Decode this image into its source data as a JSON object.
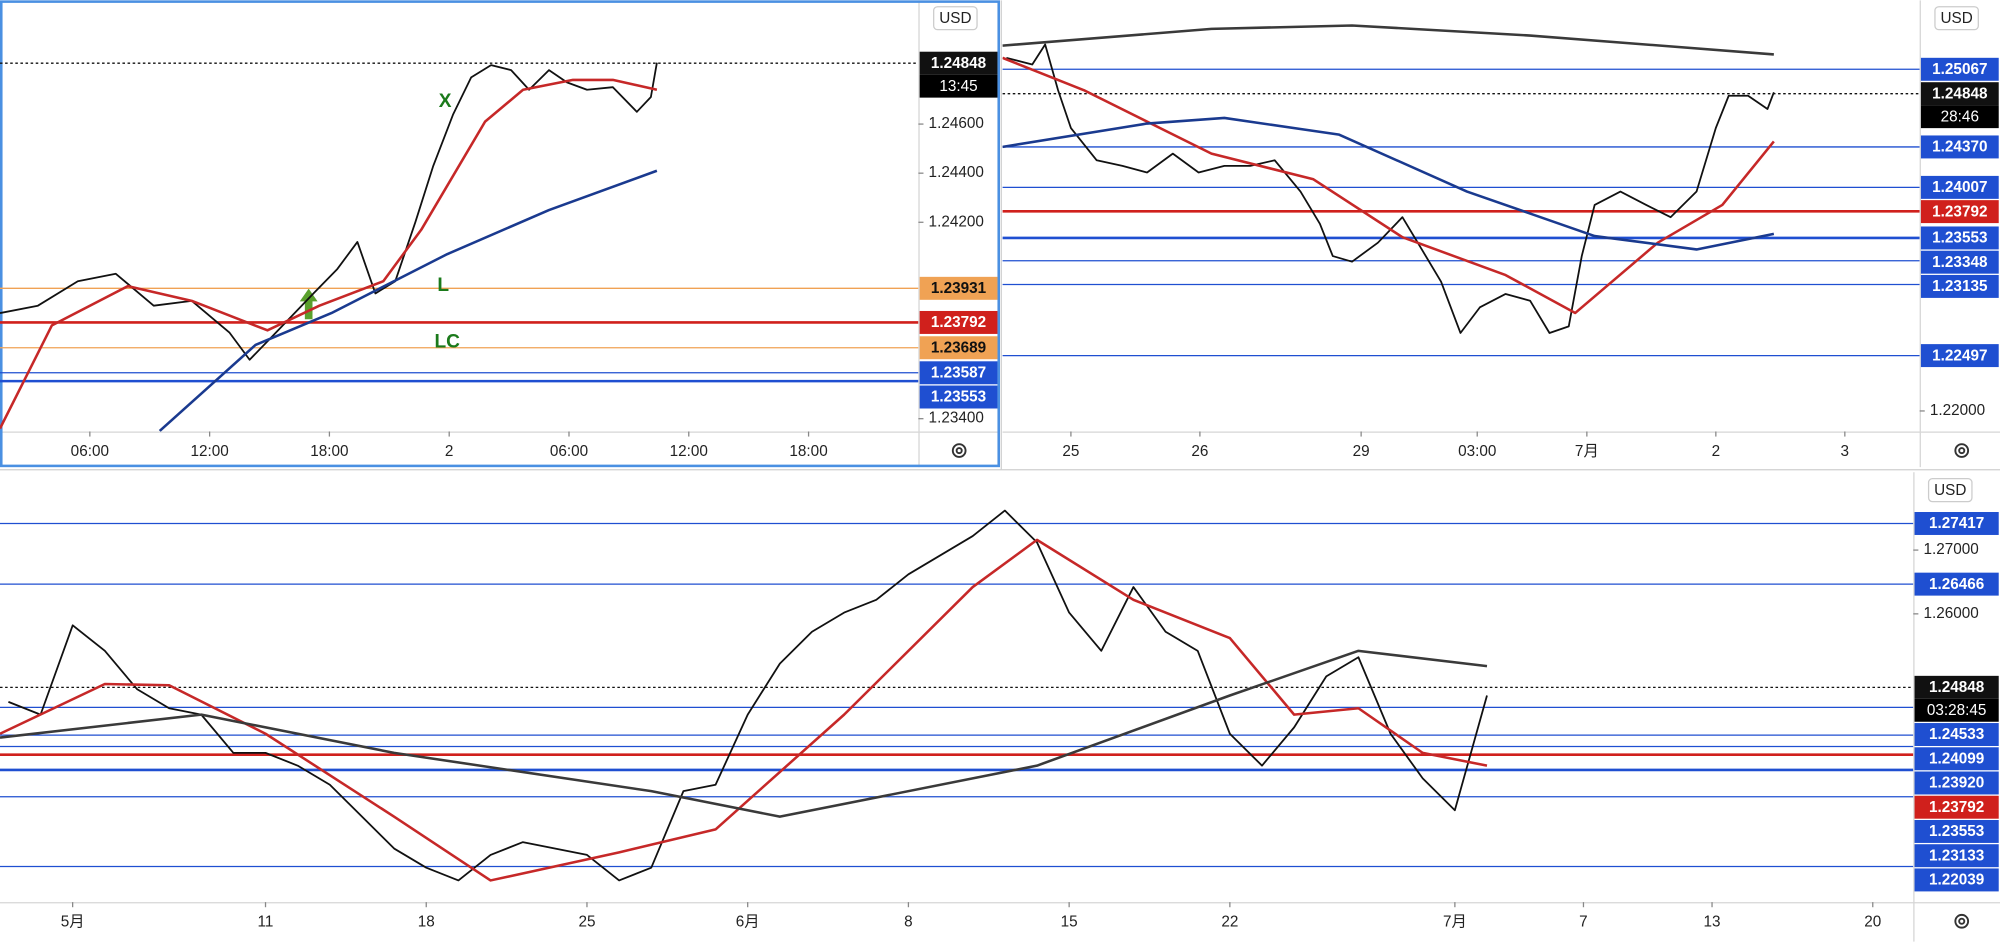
{
  "chart_data": [
    {
      "type": "line",
      "currency": "USD",
      "countdown": "13:45",
      "xlim": [
        1.5,
        47.5
      ],
      "ylim": [
        1.23348,
        1.25104
      ],
      "xticks": [
        {
          "value": 6,
          "label": "06:00"
        },
        {
          "value": 12,
          "label": "12:00"
        },
        {
          "value": 18,
          "label": "18:00"
        },
        {
          "value": 24,
          "label": "2"
        },
        {
          "value": 30,
          "label": "06:00"
        },
        {
          "value": 36,
          "label": "12:00"
        },
        {
          "value": 42,
          "label": "18:00"
        }
      ],
      "yticks": [
        {
          "value": 1.246,
          "label": "1.24600"
        },
        {
          "value": 1.244,
          "label": "1.24400"
        },
        {
          "value": 1.242,
          "label": "1.24200"
        },
        {
          "value": 1.234,
          "label": "1.23400"
        }
      ],
      "levels": [
        {
          "value": 1.24848,
          "label": "1.24848",
          "color": "#111111",
          "style": "dotted"
        },
        {
          "value": 1.23931,
          "label": "1.23931",
          "color": "#f0a254",
          "style": "solid"
        },
        {
          "value": 1.23792,
          "label": "1.23792",
          "color": "#d0201c",
          "style": "thick"
        },
        {
          "value": 1.23689,
          "label": "1.23689",
          "color": "#f0a254",
          "style": "solid"
        },
        {
          "value": 1.23587,
          "label": "1.23587",
          "color": "#1f4fd1",
          "style": "solid"
        },
        {
          "value": 1.23553,
          "label": "1.23553",
          "color": "#1f4fd1",
          "style": "thick"
        }
      ],
      "annotations": [
        {
          "text": "X",
          "x": 23.8,
          "y": 1.2469
        },
        {
          "text": "L",
          "x": 23.7,
          "y": 1.2394
        },
        {
          "text": "LC",
          "x": 23.9,
          "y": 1.2371
        }
      ],
      "annotation_color": "#1b7a1b",
      "series": [
        {
          "color": "#111111",
          "x": [
            1.5,
            3.4,
            5.4,
            7.3,
            9.2,
            11.1,
            13.0,
            14.0,
            15.2,
            17.2,
            18.4,
            19.4,
            20.3,
            21.3,
            22.3,
            23.2,
            24.2,
            25.1,
            26.1,
            27.1,
            28.0,
            29.0,
            29.9,
            30.9,
            32.2,
            33.4,
            34.1,
            34.4
          ],
          "values": [
            1.2383,
            1.2386,
            1.2396,
            1.2399,
            1.2386,
            1.2388,
            1.2375,
            1.2364,
            1.2374,
            1.2391,
            1.2401,
            1.2412,
            1.2391,
            1.2396,
            1.242,
            1.2443,
            1.2464,
            1.2479,
            1.2484,
            1.2482,
            1.2474,
            1.2482,
            1.2477,
            1.2474,
            1.2475,
            1.2465,
            1.2471,
            1.2485
          ]
        },
        {
          "color": "#c62828",
          "x": [
            1.5,
            4.1,
            7.9,
            11.1,
            14.9,
            17.5,
            20.7,
            22.6,
            25.8,
            27.7,
            30.2,
            32.2,
            34.4
          ],
          "values": [
            1.2336,
            1.2378,
            1.2394,
            1.2388,
            1.2376,
            1.2386,
            1.2396,
            1.2417,
            1.2461,
            1.2474,
            1.2478,
            1.2478,
            1.2474
          ]
        },
        {
          "color": "#1a3a8f",
          "x": [
            9.5,
            14.3,
            18.1,
            23.9,
            29.0,
            34.4
          ],
          "values": [
            1.2335,
            1.237,
            1.2383,
            1.2407,
            1.2425,
            1.2441
          ]
        }
      ]
    },
    {
      "type": "line",
      "currency": "USD",
      "countdown": "28:46",
      "xlim": [
        -0.53,
        6.58
      ],
      "ylim": [
        1.21816,
        1.25686
      ],
      "xticks": [
        {
          "value": 0,
          "label": "25"
        },
        {
          "value": 1,
          "label": "26"
        },
        {
          "value": 2.25,
          "label": "29"
        },
        {
          "value": 3.15,
          "label": "03:00"
        },
        {
          "value": 4,
          "label": "7月"
        },
        {
          "value": 5,
          "label": "2"
        },
        {
          "value": 6,
          "label": "3"
        }
      ],
      "yticks": [
        {
          "value": 1.22,
          "label": "1.22000"
        }
      ],
      "levels": [
        {
          "value": 1.25067,
          "label": "1.25067",
          "color": "#1f4fd1",
          "style": "solid"
        },
        {
          "value": 1.24848,
          "label": "1.24848",
          "color": "#111111",
          "style": "dotted"
        },
        {
          "value": 1.2437,
          "label": "1.24370",
          "color": "#1f4fd1",
          "style": "solid"
        },
        {
          "value": 1.24007,
          "label": "1.24007",
          "color": "#1f4fd1",
          "style": "solid"
        },
        {
          "value": 1.23792,
          "label": "1.23792",
          "color": "#d0201c",
          "style": "thick"
        },
        {
          "value": 1.23553,
          "label": "1.23553",
          "color": "#1f4fd1",
          "style": "thick"
        },
        {
          "value": 1.23348,
          "label": "1.23348",
          "color": "#1f4fd1",
          "style": "solid"
        },
        {
          "value": 1.23135,
          "label": "1.23135",
          "color": "#1f4fd1",
          "style": "solid"
        },
        {
          "value": 1.22497,
          "label": "1.22497",
          "color": "#1f4fd1",
          "style": "solid"
        }
      ],
      "series": [
        {
          "color": "#111111",
          "x": [
            -0.5,
            -0.3,
            -0.2,
            -0.1,
            0,
            0.2,
            0.4,
            0.59,
            0.79,
            0.99,
            1.19,
            1.39,
            1.58,
            1.78,
            1.93,
            2.03,
            2.18,
            2.38,
            2.57,
            2.72,
            2.87,
            3.02,
            3.17,
            3.37,
            3.56,
            3.71,
            3.86,
            3.96,
            4.06,
            4.26,
            4.46,
            4.65,
            4.85,
            5.0,
            5.1,
            5.25,
            5.4,
            5.45
          ],
          "values": [
            1.2517,
            1.2511,
            1.2529,
            1.2488,
            1.2454,
            1.2425,
            1.242,
            1.2414,
            1.2431,
            1.2414,
            1.242,
            1.242,
            1.2425,
            1.2397,
            1.2368,
            1.2339,
            1.2334,
            1.2351,
            1.2374,
            1.2345,
            1.2316,
            1.227,
            1.2293,
            1.2305,
            1.2299,
            1.227,
            1.2276,
            1.2339,
            1.2385,
            1.2397,
            1.2385,
            1.2374,
            1.2397,
            1.2454,
            1.2483,
            1.2483,
            1.2471,
            1.2486
          ]
        },
        {
          "color": "#c62828",
          "x": [
            -0.53,
            0.1,
            1.09,
            1.88,
            2.57,
            3.37,
            3.91,
            4.55,
            5.05,
            5.45
          ],
          "values": [
            1.2517,
            1.2488,
            1.2431,
            1.2408,
            1.2356,
            1.2322,
            1.2288,
            1.2351,
            1.2385,
            1.2442
          ]
        },
        {
          "color": "#1a3a8f",
          "x": [
            -0.53,
            0.59,
            1.19,
            2.08,
            3.07,
            4.06,
            4.85,
            5.45
          ],
          "values": [
            1.2437,
            1.2458,
            1.2463,
            1.2448,
            1.2397,
            1.2357,
            1.2345,
            1.2359
          ]
        },
        {
          "color": "#3a3a3a",
          "x": [
            -0.53,
            1.09,
            2.18,
            3.56,
            5.45
          ],
          "values": [
            1.2528,
            1.2543,
            1.2546,
            1.2537,
            1.252
          ]
        }
      ]
    },
    {
      "type": "line",
      "currency": "USD",
      "countdown": "03:28:45",
      "xlim": [
        -2.26,
        57.26
      ],
      "ylim": [
        1.2148,
        1.2822
      ],
      "xticks": [
        {
          "value": 0,
          "label": "5月"
        },
        {
          "value": 6,
          "label": "11"
        },
        {
          "value": 11,
          "label": "18"
        },
        {
          "value": 16,
          "label": "25"
        },
        {
          "value": 21,
          "label": "6月"
        },
        {
          "value": 26,
          "label": "8"
        },
        {
          "value": 31,
          "label": "15"
        },
        {
          "value": 36,
          "label": "22"
        },
        {
          "value": 43,
          "label": "7月"
        },
        {
          "value": 47,
          "label": "7"
        },
        {
          "value": 51,
          "label": "13"
        },
        {
          "value": 56,
          "label": "20"
        }
      ],
      "yticks": [
        {
          "value": 1.27,
          "label": "1.27000"
        },
        {
          "value": 1.26,
          "label": "1.26000"
        }
      ],
      "levels": [
        {
          "value": 1.27417,
          "label": "1.27417",
          "color": "#1f4fd1",
          "style": "solid"
        },
        {
          "value": 1.26466,
          "label": "1.26466",
          "color": "#1f4fd1",
          "style": "solid"
        },
        {
          "value": 1.24848,
          "label": "1.24848",
          "color": "#111111",
          "style": "dotted"
        },
        {
          "value": 1.24533,
          "label": "1.24533",
          "color": "#1f4fd1",
          "style": "solid"
        },
        {
          "value": 1.24099,
          "label": "1.24099",
          "color": "#1f4fd1",
          "style": "solid"
        },
        {
          "value": 1.2392,
          "label": "1.23920",
          "color": "#1f4fd1",
          "style": "solid"
        },
        {
          "value": 1.23792,
          "label": "1.23792",
          "color": "#d0201c",
          "style": "thick"
        },
        {
          "value": 1.23553,
          "label": "1.23553",
          "color": "#1f4fd1",
          "style": "thick"
        },
        {
          "value": 1.23133,
          "label": "1.23133",
          "color": "#1f4fd1",
          "style": "solid"
        },
        {
          "value": 1.22039,
          "label": "1.22039",
          "color": "#1f4fd1",
          "style": "solid"
        }
      ],
      "series": [
        {
          "color": "#111111",
          "x": [
            -2,
            -1,
            0,
            1,
            2,
            3,
            4,
            5,
            6,
            7,
            8,
            9,
            10,
            11,
            12,
            13,
            14,
            15,
            16,
            17,
            18,
            19,
            20,
            21,
            22,
            23,
            24,
            25,
            26,
            27,
            28,
            29,
            30,
            31,
            32,
            33,
            34,
            35,
            36,
            37,
            38,
            39,
            40,
            41,
            42,
            43,
            44
          ],
          "values": [
            1.2462,
            1.2442,
            1.2582,
            1.2542,
            1.2482,
            1.2452,
            1.2442,
            1.2382,
            1.2382,
            1.2362,
            1.2332,
            1.2282,
            1.2232,
            1.2202,
            1.2182,
            1.2222,
            1.2242,
            1.2232,
            1.2222,
            1.2182,
            1.2202,
            1.2322,
            1.2332,
            1.2442,
            1.2522,
            1.2572,
            1.2602,
            1.2622,
            1.2662,
            1.2692,
            1.2722,
            1.2762,
            1.2712,
            1.2602,
            1.2542,
            1.2642,
            1.2572,
            1.2542,
            1.2412,
            1.2362,
            1.2422,
            1.2502,
            1.2532,
            1.2412,
            1.2342,
            1.2292,
            1.2472
          ]
        },
        {
          "color": "#c62828",
          "x": [
            -2.26,
            1,
            3,
            6,
            10,
            13,
            17,
            20,
            24,
            28,
            30,
            33,
            36,
            38,
            40,
            42,
            44
          ],
          "values": [
            1.2412,
            1.249,
            1.2488,
            1.2412,
            1.2282,
            1.2182,
            1.2226,
            1.2262,
            1.2442,
            1.2642,
            1.2716,
            1.2622,
            1.2562,
            1.2442,
            1.2452,
            1.2382,
            1.2362
          ]
        },
        {
          "color": "#3a3a3a",
          "x": [
            -2.26,
            4,
            10,
            18,
            22,
            30,
            36,
            40,
            44
          ],
          "values": [
            1.2406,
            1.2442,
            1.2382,
            1.2322,
            1.2282,
            1.2362,
            1.2472,
            1.2542,
            1.2518
          ]
        }
      ]
    }
  ]
}
